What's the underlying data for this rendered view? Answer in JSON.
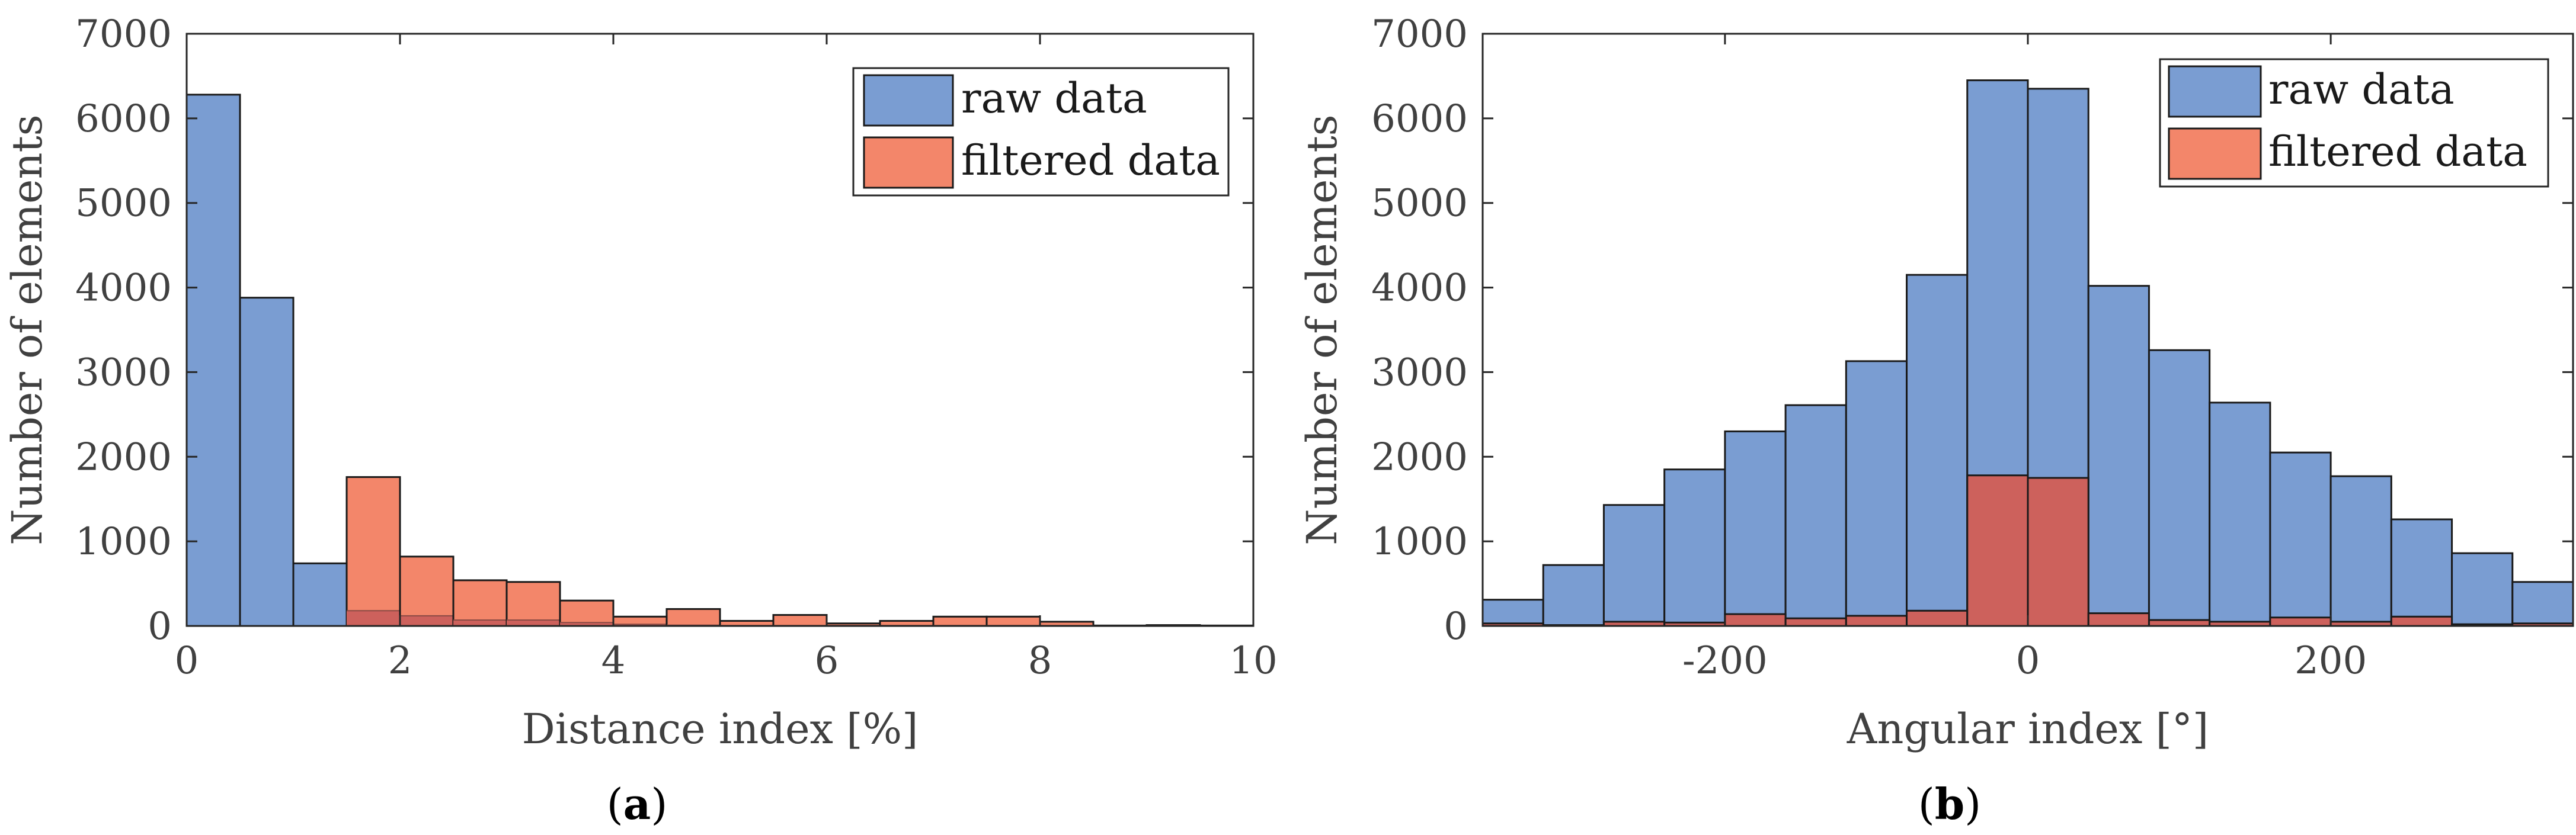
{
  "colors": {
    "raw": "#7a9dd2",
    "filtered": "#f3866a",
    "overlap": "#cd615c",
    "axis": "#262626",
    "text": "#404040"
  },
  "chart_data": [
    {
      "id": "a",
      "type": "bar",
      "title": "",
      "caption": "(a)",
      "caption_letter": "a",
      "xlabel": "Distance index [%]",
      "ylabel": "Number of elements",
      "xlim": [
        0,
        10
      ],
      "ylim": [
        0,
        7000
      ],
      "xticks": [
        0,
        2,
        4,
        6,
        8,
        10
      ],
      "xtick_labels": [
        "0",
        "2",
        "4",
        "6",
        "8",
        "10"
      ],
      "yticks": [
        0,
        1000,
        2000,
        3000,
        4000,
        5000,
        6000,
        7000
      ],
      "ytick_labels": [
        "0",
        "1000",
        "2000",
        "3000",
        "4000",
        "5000",
        "6000",
        "7000"
      ],
      "legend": {
        "position": "top-right",
        "entries": [
          "raw data",
          "filtered data"
        ]
      },
      "series": [
        {
          "name": "raw data",
          "bin_edges": [
            0,
            0.5,
            1,
            1.5,
            2,
            2.5,
            3,
            3.5,
            4,
            4.5,
            5,
            5.5,
            6,
            6.5,
            7,
            7.5,
            8,
            8.5,
            9,
            9.5,
            10
          ],
          "values": [
            6280,
            3880,
            740,
            180,
            120,
            70,
            70,
            40,
            20,
            10,
            5,
            5,
            5,
            5,
            5,
            5,
            5,
            5,
            10,
            5
          ]
        },
        {
          "name": "filtered data",
          "bin_edges": [
            1.5,
            2,
            2.5,
            3,
            3.5,
            4,
            4.5,
            5,
            5.5,
            6,
            6.5,
            7,
            7.5,
            8,
            8.5
          ],
          "values": [
            1760,
            820,
            540,
            520,
            300,
            110,
            200,
            60,
            130,
            30,
            60,
            110,
            110,
            50
          ]
        }
      ]
    },
    {
      "id": "b",
      "type": "bar",
      "title": "",
      "caption": "(b)",
      "caption_letter": "b",
      "xlabel": "Angular index [°]",
      "ylabel": "Number of elements",
      "xlim": [
        -360,
        360
      ],
      "ylim": [
        0,
        7000
      ],
      "xticks": [
        -200,
        0,
        200
      ],
      "xtick_labels": [
        "-200",
        "0",
        "200"
      ],
      "yticks": [
        0,
        1000,
        2000,
        3000,
        4000,
        5000,
        6000,
        7000
      ],
      "ytick_labels": [
        "0",
        "1000",
        "2000",
        "3000",
        "4000",
        "5000",
        "6000",
        "7000"
      ],
      "legend": {
        "position": "top-right",
        "entries": [
          "raw data",
          "filtered data"
        ]
      },
      "series": [
        {
          "name": "raw data",
          "bin_edges": [
            -360,
            -320,
            -280,
            -240,
            -200,
            -160,
            -120,
            -80,
            -40,
            0,
            40,
            80,
            120,
            160,
            200,
            240,
            280,
            320,
            360
          ],
          "values": [
            310,
            720,
            1430,
            1850,
            2300,
            2610,
            3130,
            4150,
            6450,
            6350,
            4020,
            3260,
            2640,
            2050,
            1770,
            1260,
            860,
            520
          ]
        },
        {
          "name": "filtered data",
          "bin_edges": [
            -360,
            -320,
            -280,
            -240,
            -200,
            -160,
            -120,
            -80,
            -40,
            0,
            40,
            80,
            120,
            160,
            200,
            240,
            280,
            320,
            360
          ],
          "values": [
            30,
            10,
            50,
            40,
            140,
            90,
            120,
            180,
            1780,
            1750,
            150,
            70,
            50,
            100,
            50,
            110,
            20,
            30
          ]
        }
      ]
    }
  ]
}
